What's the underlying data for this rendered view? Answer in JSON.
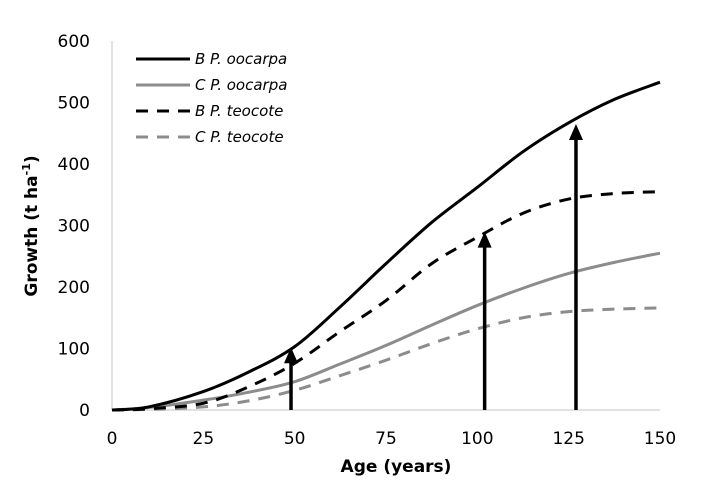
{
  "chart_data": {
    "type": "line",
    "title": "",
    "xlabel": "Age (years)",
    "ylabel": "Growth (t ha",
    "ylabel_superscript": "-1",
    "ylabel_close": ")",
    "xlim": [
      0,
      150
    ],
    "ylim": [
      0,
      600
    ],
    "xticks": [
      0,
      25,
      50,
      75,
      100,
      125,
      150
    ],
    "yticks": [
      0,
      100,
      200,
      300,
      400,
      500,
      600
    ],
    "grid": false,
    "legend_position": "top-left",
    "x": [
      0,
      10,
      25,
      37.5,
      50,
      62.5,
      75,
      87.5,
      100,
      112.5,
      125,
      137.5,
      150
    ],
    "series": [
      {
        "name": "B P. oocarpa",
        "color": "#000000",
        "dashed": false,
        "values": [
          0,
          5,
          30,
          62,
          103,
          168,
          238,
          305,
          362,
          420,
          467,
          505,
          533
        ]
      },
      {
        "name": "C P. oocarpa",
        "color": "#8c8c8c",
        "dashed": false,
        "values": [
          0,
          4,
          16,
          29,
          46,
          75,
          105,
          138,
          170,
          198,
          222,
          240,
          255
        ]
      },
      {
        "name": "B P. teocote",
        "color": "#000000",
        "dashed": true,
        "values": [
          0,
          2,
          11,
          38,
          76,
          128,
          178,
          238,
          281,
          320,
          343,
          352,
          355
        ]
      },
      {
        "name": "C P. teocote",
        "color": "#8c8c8c",
        "dashed": true,
        "values": [
          0,
          1,
          5,
          15,
          32,
          56,
          81,
          108,
          132,
          150,
          160,
          164,
          166
        ]
      }
    ],
    "arrows": [
      {
        "x": 49,
        "y_from": 0,
        "y_to": 102
      },
      {
        "x": 102,
        "y_from": 0,
        "y_to": 290
      },
      {
        "x": 127,
        "y_from": 0,
        "y_to": 465
      }
    ]
  }
}
